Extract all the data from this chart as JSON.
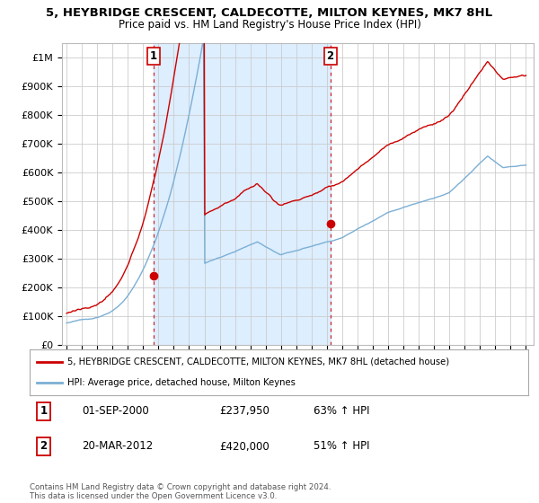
{
  "title": "5, HEYBRIDGE CRESCENT, CALDECOTTE, MILTON KEYNES, MK7 8HL",
  "subtitle": "Price paid vs. HM Land Registry's House Price Index (HPI)",
  "title_fontsize": 10,
  "subtitle_fontsize": 9,
  "ylim": [
    0,
    1050000
  ],
  "yticks": [
    0,
    100000,
    200000,
    300000,
    400000,
    500000,
    600000,
    700000,
    800000,
    900000,
    1000000
  ],
  "ytick_labels": [
    "£0",
    "£100K",
    "£200K",
    "£300K",
    "£400K",
    "£500K",
    "£600K",
    "£700K",
    "£800K",
    "£900K",
    "£1M"
  ],
  "legend_line1": "5, HEYBRIDGE CRESCENT, CALDECOTTE, MILTON KEYNES, MK7 8HL (detached house)",
  "legend_line2": "HPI: Average price, detached house, Milton Keynes",
  "sale1_label": "1",
  "sale1_date": "01-SEP-2000",
  "sale1_price": "£237,950",
  "sale1_hpi": "63% ↑ HPI",
  "sale2_label": "2",
  "sale2_date": "20-MAR-2012",
  "sale2_price": "£420,000",
  "sale2_hpi": "51% ↑ HPI",
  "footer": "Contains HM Land Registry data © Crown copyright and database right 2024.\nThis data is licensed under the Open Government Licence v3.0.",
  "hpi_color": "#7bafd4",
  "price_color": "#cc0000",
  "shade_color": "#ddeeff",
  "marker_color": "#cc0000",
  "sale1_year": 2000.67,
  "sale1_value": 237950,
  "sale2_year": 2012.22,
  "sale2_value": 420000,
  "xlim_left": 1994.7,
  "xlim_right": 2025.5,
  "background_color": "#ffffff",
  "grid_color": "#cccccc"
}
